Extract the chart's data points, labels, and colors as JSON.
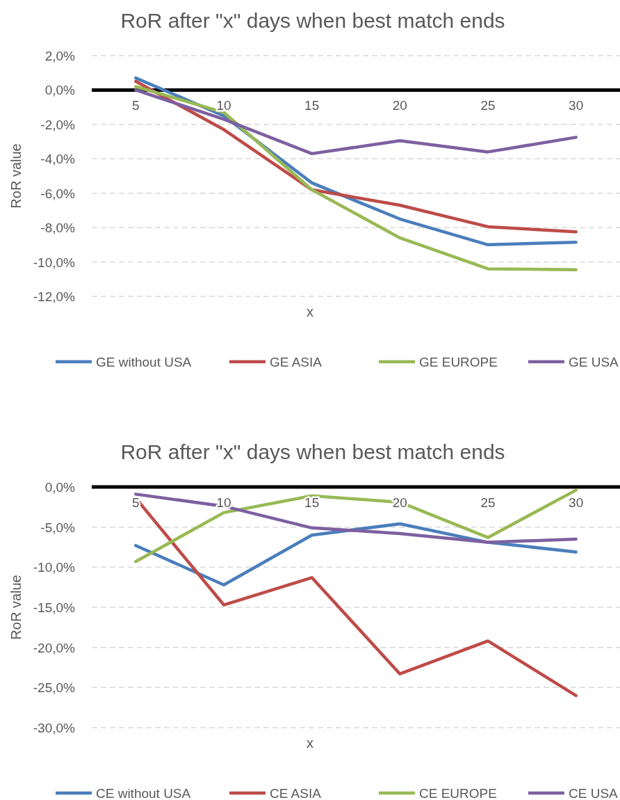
{
  "chart_data": [
    {
      "type": "line",
      "title": "RoR after \"x\" days when best match ends",
      "xlabel": "x",
      "ylabel": "RoR value",
      "categories": [
        "5",
        "10",
        "15",
        "20",
        "25",
        "30"
      ],
      "series": [
        {
          "name": "GE without USA",
          "color": "#4a7ebb",
          "values": [
            0.7,
            -1.5,
            -5.4,
            -7.5,
            -9.0,
            -8.85
          ]
        },
        {
          "name": "GE ASIA",
          "color": "#be4b48",
          "values": [
            0.5,
            -2.3,
            -5.8,
            -6.7,
            -7.95,
            -8.25
          ]
        },
        {
          "name": "GE EUROPE",
          "color": "#98b954",
          "values": [
            0.2,
            -1.3,
            -5.8,
            -8.6,
            -10.4,
            -10.45
          ]
        },
        {
          "name": "GE USA",
          "color": "#7d60a0",
          "values": [
            0.0,
            -1.7,
            -3.7,
            -2.95,
            -3.6,
            -2.75
          ]
        }
      ],
      "ylim": [
        -12,
        2
      ],
      "yticks": [
        {
          "value": -12,
          "label": "-12,0%"
        },
        {
          "value": -10,
          "label": "-10,0%"
        },
        {
          "value": -8,
          "label": "-8,0%"
        },
        {
          "value": -6,
          "label": "-6,0%"
        },
        {
          "value": -4,
          "label": "-4,0%"
        },
        {
          "value": -2,
          "label": "-2,0%"
        },
        {
          "value": 0,
          "label": "0,0%"
        },
        {
          "value": 2,
          "label": "2,0%"
        }
      ],
      "grid": "y",
      "legend": "bottom"
    },
    {
      "type": "line",
      "title": "RoR after \"x\" days when best match ends",
      "xlabel": "x",
      "ylabel": "RoR value",
      "categories": [
        "5",
        "10",
        "15",
        "20",
        "25",
        "30"
      ],
      "series": [
        {
          "name": "CE without USA",
          "color": "#4a7ebb",
          "values": [
            -7.3,
            -12.2,
            -6.0,
            -4.6,
            -6.9,
            -8.1
          ]
        },
        {
          "name": "CE ASIA",
          "color": "#be4b48",
          "values": [
            -1.4,
            -14.7,
            -11.3,
            -23.3,
            -19.2,
            -26.0
          ]
        },
        {
          "name": "CE EUROPE",
          "color": "#98b954",
          "values": [
            -9.3,
            -3.2,
            -1.1,
            -1.9,
            -6.3,
            -0.4
          ]
        },
        {
          "name": "CE USA",
          "color": "#7d60a0",
          "values": [
            -0.9,
            -2.4,
            -5.1,
            -5.8,
            -6.9,
            -6.5
          ]
        }
      ],
      "ylim": [
        -30,
        0
      ],
      "yticks": [
        {
          "value": -30,
          "label": "-30,0%"
        },
        {
          "value": -25,
          "label": "-25,0%"
        },
        {
          "value": -20,
          "label": "-20,0%"
        },
        {
          "value": -15,
          "label": "-15,0%"
        },
        {
          "value": -10,
          "label": "-10,0%"
        },
        {
          "value": -5,
          "label": "-5,0%"
        },
        {
          "value": 0,
          "label": "0,0%"
        }
      ],
      "grid": "y",
      "legend": "bottom"
    }
  ]
}
